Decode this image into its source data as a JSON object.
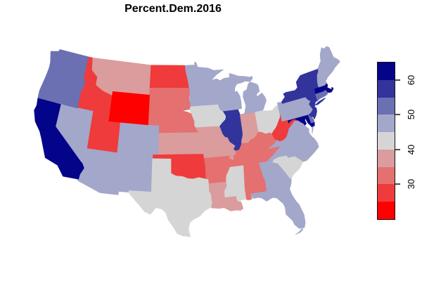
{
  "title": "Percent.Dem.2016",
  "background_color": "#FFFFFF",
  "chart_data": {
    "type": "choropleth",
    "title": "Percent.Dem.2016",
    "variable": "Percent.Dem.2016",
    "geography": "United States, lower 48 states",
    "color_scale": {
      "domain": [
        20,
        65
      ],
      "breaks": [
        20,
        25,
        30,
        35,
        40,
        45,
        50,
        55,
        60,
        65
      ],
      "colors": [
        "#FF0000",
        "#EF3B3B",
        "#E57070",
        "#DA9C9C",
        "#D5D5D5",
        "#A3A7CA",
        "#6B70B3",
        "#32349C",
        "#04048A"
      ],
      "low_color": "#FF0000",
      "high_color": "#04048A"
    },
    "legend": {
      "position": "right",
      "orientation": "vertical",
      "ticks": [
        "30",
        "40",
        "50",
        "60"
      ],
      "tick_values": [
        30,
        40,
        50,
        60
      ]
    },
    "states": [
      {
        "abbr": "AL",
        "name": "Alabama",
        "value": 34.4
      },
      {
        "abbr": "AZ",
        "name": "Arizona",
        "value": 45.1
      },
      {
        "abbr": "AR",
        "name": "Arkansas",
        "value": 33.7
      },
      {
        "abbr": "CA",
        "name": "California",
        "value": 61.7
      },
      {
        "abbr": "CO",
        "name": "Colorado",
        "value": 48.2
      },
      {
        "abbr": "CT",
        "name": "Connecticut",
        "value": 54.6
      },
      {
        "abbr": "DE",
        "name": "Delaware",
        "value": 53.4
      },
      {
        "abbr": "FL",
        "name": "Florida",
        "value": 47.8
      },
      {
        "abbr": "GA",
        "name": "Georgia",
        "value": 45.9
      },
      {
        "abbr": "ID",
        "name": "Idaho",
        "value": 27.5
      },
      {
        "abbr": "IL",
        "name": "Illinois",
        "value": 55.8
      },
      {
        "abbr": "IN",
        "name": "Indiana",
        "value": 37.9
      },
      {
        "abbr": "IA",
        "name": "Iowa",
        "value": 41.7
      },
      {
        "abbr": "KS",
        "name": "Kansas",
        "value": 36.1
      },
      {
        "abbr": "KY",
        "name": "Kentucky",
        "value": 32.7
      },
      {
        "abbr": "LA",
        "name": "Louisiana",
        "value": 38.4
      },
      {
        "abbr": "ME",
        "name": "Maine",
        "value": 47.8
      },
      {
        "abbr": "MD",
        "name": "Maryland",
        "value": 60.3
      },
      {
        "abbr": "MA",
        "name": "Massachusetts",
        "value": 60.0
      },
      {
        "abbr": "MI",
        "name": "Michigan",
        "value": 47.3
      },
      {
        "abbr": "MN",
        "name": "Minnesota",
        "value": 46.4
      },
      {
        "abbr": "MS",
        "name": "Mississippi",
        "value": 40.1
      },
      {
        "abbr": "MO",
        "name": "Missouri",
        "value": 38.1
      },
      {
        "abbr": "MT",
        "name": "Montana",
        "value": 35.7
      },
      {
        "abbr": "NE",
        "name": "Nebraska",
        "value": 33.7
      },
      {
        "abbr": "NV",
        "name": "Nevada",
        "value": 47.9
      },
      {
        "abbr": "NH",
        "name": "New Hampshire",
        "value": 46.8
      },
      {
        "abbr": "NJ",
        "name": "New Jersey",
        "value": 55.5
      },
      {
        "abbr": "NM",
        "name": "New Mexico",
        "value": 48.3
      },
      {
        "abbr": "NY",
        "name": "New York",
        "value": 59.0
      },
      {
        "abbr": "NC",
        "name": "North Carolina",
        "value": 46.2
      },
      {
        "abbr": "ND",
        "name": "North Dakota",
        "value": 27.2
      },
      {
        "abbr": "OH",
        "name": "Ohio",
        "value": 43.6
      },
      {
        "abbr": "OK",
        "name": "Oklahoma",
        "value": 28.9
      },
      {
        "abbr": "OR",
        "name": "Oregon",
        "value": 50.1
      },
      {
        "abbr": "PA",
        "name": "Pennsylvania",
        "value": 47.5
      },
      {
        "abbr": "RI",
        "name": "Rhode Island",
        "value": 54.4
      },
      {
        "abbr": "SC",
        "name": "South Carolina",
        "value": 40.7
      },
      {
        "abbr": "SD",
        "name": "South Dakota",
        "value": 31.7
      },
      {
        "abbr": "TN",
        "name": "Tennessee",
        "value": 34.7
      },
      {
        "abbr": "TX",
        "name": "Texas",
        "value": 43.2
      },
      {
        "abbr": "UT",
        "name": "Utah",
        "value": 27.5
      },
      {
        "abbr": "VT",
        "name": "Vermont",
        "value": 56.7
      },
      {
        "abbr": "VA",
        "name": "Virginia",
        "value": 49.8
      },
      {
        "abbr": "WA",
        "name": "Washington",
        "value": 52.5
      },
      {
        "abbr": "WV",
        "name": "West Virginia",
        "value": 26.4
      },
      {
        "abbr": "WI",
        "name": "Wisconsin",
        "value": 46.5
      },
      {
        "abbr": "WY",
        "name": "Wyoming",
        "value": 21.9
      }
    ]
  }
}
